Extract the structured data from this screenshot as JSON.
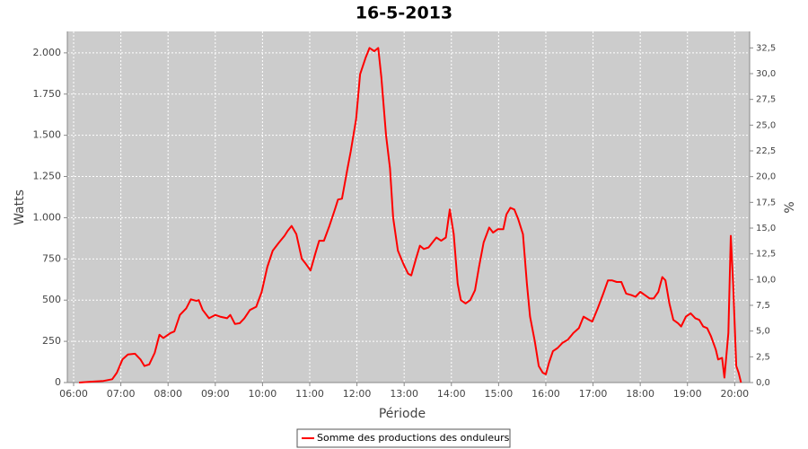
{
  "chart_data": {
    "type": "line",
    "title": "16-5-2013",
    "x_label": "Période",
    "y_label": "Watts",
    "y2_label": "%",
    "grid": true,
    "legend": "bottom",
    "xlim": [
      "05:52",
      "20:19"
    ],
    "xticks": [
      "06:00",
      "07:00",
      "08:00",
      "09:00",
      "10:00",
      "11:00",
      "12:00",
      "13:00",
      "14:00",
      "15:00",
      "16:00",
      "17:00",
      "18:00",
      "19:00",
      "20:00"
    ],
    "ylim": [
      0,
      2130
    ],
    "yticks": [
      0,
      250,
      500,
      750,
      {
        "value": 1000,
        "label": "1.000"
      },
      {
        "value": 1250,
        "label": "1.250"
      },
      {
        "value": 1500,
        "label": "1.500"
      },
      {
        "value": 1750,
        "label": "1.750"
      },
      {
        "value": 2000,
        "label": "2.000"
      }
    ],
    "y2lim": [
      0,
      34.1
    ],
    "y2ticks": [
      {
        "value": 0,
        "label": "0,0"
      },
      {
        "value": 2.5,
        "label": "2,5"
      },
      {
        "value": 5,
        "label": "5,0"
      },
      {
        "value": 7.5,
        "label": "7,5"
      },
      {
        "value": 10,
        "label": "10,0"
      },
      {
        "value": 12.5,
        "label": "12,5"
      },
      {
        "value": 15,
        "label": "15,0"
      },
      {
        "value": 17.5,
        "label": "17,5"
      },
      {
        "value": 20,
        "label": "20,0"
      },
      {
        "value": 22.5,
        "label": "22,5"
      },
      {
        "value": 25,
        "label": "25,0"
      },
      {
        "value": 27.5,
        "label": "27,5"
      },
      {
        "value": 30,
        "label": "30,0"
      },
      {
        "value": 32.5,
        "label": "32,5"
      }
    ],
    "x": [
      "06:07",
      "06:21",
      "06:38",
      "06:49",
      "06:55",
      "07:02",
      "07:09",
      "07:18",
      "07:25",
      "07:30",
      "07:36",
      "07:43",
      "07:49",
      "07:54",
      "08:03",
      "08:08",
      "08:15",
      "08:23",
      "08:29",
      "08:36",
      "08:39",
      "08:44",
      "08:52",
      "09:00",
      "09:06",
      "09:15",
      "09:19",
      "09:25",
      "09:31",
      "09:37",
      "09:44",
      "09:52",
      "09:59",
      "10:06",
      "10:13",
      "10:21",
      "10:28",
      "10:32",
      "10:37",
      "10:43",
      "10:50",
      "10:55",
      "11:01",
      "11:07",
      "11:12",
      "11:18",
      "11:25",
      "11:32",
      "11:36",
      "11:41",
      "11:48",
      "11:52",
      "11:59",
      "12:04",
      "12:11",
      "12:16",
      "12:22",
      "12:27",
      "12:31",
      "12:37",
      "12:42",
      "12:46",
      "12:52",
      "12:59",
      "13:05",
      "13:09",
      "13:15",
      "13:20",
      "13:25",
      "13:31",
      "13:36",
      "13:41",
      "13:47",
      "13:53",
      "13:58",
      "14:03",
      "14:08",
      "14:12",
      "14:18",
      "14:24",
      "14:30",
      "14:35",
      "14:41",
      "14:48",
      "14:53",
      "14:59",
      "15:06",
      "15:10",
      "15:15",
      "15:20",
      "15:25",
      "15:31",
      "15:36",
      "15:40",
      "15:46",
      "15:51",
      "15:56",
      "16:00",
      "16:04",
      "16:09",
      "16:15",
      "16:21",
      "16:28",
      "16:35",
      "16:42",
      "16:48",
      "16:55",
      "16:59",
      "17:06",
      "17:13",
      "17:19",
      "17:24",
      "17:30",
      "17:36",
      "17:42",
      "17:49",
      "17:54",
      "18:00",
      "18:06",
      "18:12",
      "18:17",
      "18:23",
      "18:28",
      "18:32",
      "18:37",
      "18:42",
      "18:48",
      "18:52",
      "18:58",
      "19:04",
      "19:10",
      "19:15",
      "19:20",
      "19:25",
      "19:30",
      "19:36",
      "19:39",
      "19:44",
      "19:47",
      "19:52",
      "19:55",
      "19:58",
      "20:02",
      "20:05",
      "20:08"
    ],
    "series": [
      {
        "name": "Somme des productions des onduleurs",
        "color": "#ff0000",
        "values": [
          0,
          5,
          10,
          20,
          60,
          140,
          170,
          175,
          140,
          100,
          110,
          180,
          290,
          270,
          300,
          310,
          410,
          450,
          505,
          495,
          500,
          440,
          390,
          410,
          400,
          390,
          410,
          355,
          360,
          390,
          440,
          460,
          550,
          700,
          800,
          850,
          890,
          920,
          950,
          900,
          750,
          720,
          680,
          780,
          860,
          860,
          950,
          1050,
          1110,
          1115,
          1300,
          1400,
          1600,
          1870,
          1970,
          2030,
          2010,
          2030,
          1850,
          1500,
          1300,
          1000,
          800,
          720,
          660,
          650,
          750,
          830,
          810,
          820,
          850,
          880,
          860,
          880,
          1050,
          900,
          600,
          500,
          480,
          500,
          560,
          700,
          850,
          940,
          910,
          930,
          930,
          1020,
          1060,
          1050,
          990,
          900,
          600,
          400,
          250,
          100,
          60,
          50,
          120,
          190,
          210,
          240,
          260,
          300,
          330,
          400,
          380,
          370,
          450,
          540,
          620,
          620,
          610,
          610,
          540,
          530,
          520,
          550,
          530,
          510,
          510,
          550,
          640,
          620,
          480,
          380,
          360,
          340,
          400,
          420,
          390,
          380,
          340,
          330,
          280,
          200,
          140,
          150,
          30,
          300,
          890,
          600,
          100,
          60,
          0
        ]
      }
    ]
  }
}
